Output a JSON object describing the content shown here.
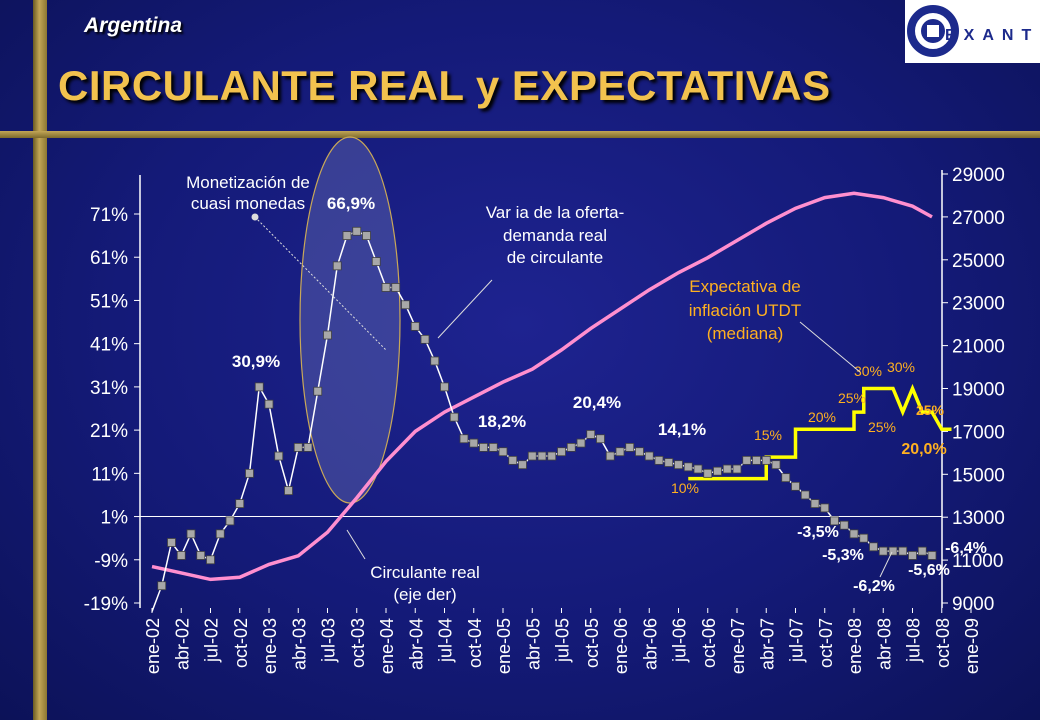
{
  "header": {
    "country": "Argentina",
    "title": "CIRCULANTE REAL y EXPECTATIVAS",
    "logo_text": "EXANTE"
  },
  "chart_data": {
    "type": "line",
    "x_tick_labels": [
      "ene-02",
      "abr-02",
      "jul-02",
      "oct-02",
      "ene-03",
      "abr-03",
      "jul-03",
      "oct-03",
      "ene-04",
      "abr-04",
      "jul-04",
      "oct-04",
      "ene-05",
      "abr-05",
      "jul-05",
      "oct-05",
      "ene-06",
      "abr-06",
      "jul-06",
      "oct-06",
      "ene-07",
      "abr-07",
      "jul-07",
      "oct-07",
      "ene-08",
      "abr-08",
      "jul-08",
      "oct-08",
      "ene-09"
    ],
    "y_left": {
      "ticks": [
        "-19%",
        "-9%",
        "1%",
        "11%",
        "21%",
        "31%",
        "41%",
        "51%",
        "61%",
        "71%"
      ],
      "range": [
        -19,
        71
      ]
    },
    "y_right": {
      "ticks": [
        "9000",
        "11000",
        "13000",
        "15000",
        "17000",
        "19000",
        "21000",
        "23000",
        "25000",
        "27000",
        "29000"
      ],
      "range": [
        9000,
        29000
      ]
    },
    "series": [
      {
        "key": "variacion",
        "color": "#ffffff",
        "marker_color": "#a8a8a8",
        "axis": "left",
        "values": [
          -21,
          -15,
          -5,
          -8,
          -3,
          -8,
          -9,
          -3,
          0,
          4,
          11,
          31,
          27,
          15,
          7,
          17,
          17,
          30,
          43,
          59,
          66,
          67,
          66,
          60,
          54,
          54,
          50,
          45,
          42,
          37,
          31,
          24,
          19,
          18,
          17,
          17,
          16,
          14,
          13,
          15,
          15,
          15,
          16,
          17,
          18,
          20,
          19,
          15,
          16,
          17,
          16,
          15,
          14,
          13.5,
          13,
          12.5,
          12,
          11,
          11.5,
          12,
          12,
          14,
          14,
          14,
          13,
          10,
          8,
          6,
          4,
          3,
          0,
          -1,
          -3,
          -4,
          -6,
          -7,
          -7,
          -7,
          -8,
          -7,
          -8
        ]
      },
      {
        "key": "circulante",
        "color": "#ff8fcf",
        "axis": "right",
        "points": [
          [
            0,
            10700
          ],
          [
            3,
            10400
          ],
          [
            6,
            10100
          ],
          [
            9,
            10200
          ],
          [
            12,
            10800
          ],
          [
            15,
            11200
          ],
          [
            18,
            12300
          ],
          [
            21,
            13900
          ],
          [
            24,
            15600
          ],
          [
            27,
            17000
          ],
          [
            30,
            17900
          ],
          [
            33,
            18600
          ],
          [
            36,
            19300
          ],
          [
            39,
            19900
          ],
          [
            42,
            20800
          ],
          [
            45,
            21800
          ],
          [
            48,
            22700
          ],
          [
            51,
            23600
          ],
          [
            54,
            24400
          ],
          [
            57,
            25100
          ],
          [
            60,
            25900
          ],
          [
            63,
            26700
          ],
          [
            66,
            27400
          ],
          [
            69,
            27900
          ],
          [
            72,
            28100
          ],
          [
            75,
            27900
          ],
          [
            78,
            27500
          ],
          [
            80,
            27000
          ]
        ]
      },
      {
        "key": "expectativa",
        "color": "#ffff00",
        "axis": "right",
        "points": [
          [
            55,
            14800
          ],
          [
            63,
            14800
          ],
          [
            63,
            15800
          ],
          [
            66,
            15800
          ],
          [
            66,
            17100
          ],
          [
            72,
            17100
          ],
          [
            72,
            17900
          ],
          [
            73,
            17900
          ],
          [
            73,
            19000
          ],
          [
            76,
            19000
          ],
          [
            77,
            17900
          ],
          [
            78,
            19000
          ],
          [
            79,
            17900
          ],
          [
            80,
            17900
          ],
          [
            81,
            17100
          ],
          [
            82,
            17100
          ]
        ]
      }
    ],
    "annotations": [
      "Monetización de",
      "cuasi monedas",
      "66,9%",
      "30,9%",
      "Var ia de la oferta-",
      "demanda real",
      "de circulante",
      "18,2%",
      "20,4%",
      "14,1%",
      "Expectativa de",
      "inflación UTDT",
      "(mediana)",
      "Circulante real",
      "(eje der)",
      "-3,5%",
      "-5,3%",
      "-6,2%",
      "-5,6%",
      "-6,4%",
      "20,0%",
      "25%"
    ],
    "step_labels": [
      "10%",
      "15%",
      "20%",
      "25%",
      "30%",
      "30%",
      "25%"
    ],
    "grid": false,
    "legend": "none"
  }
}
